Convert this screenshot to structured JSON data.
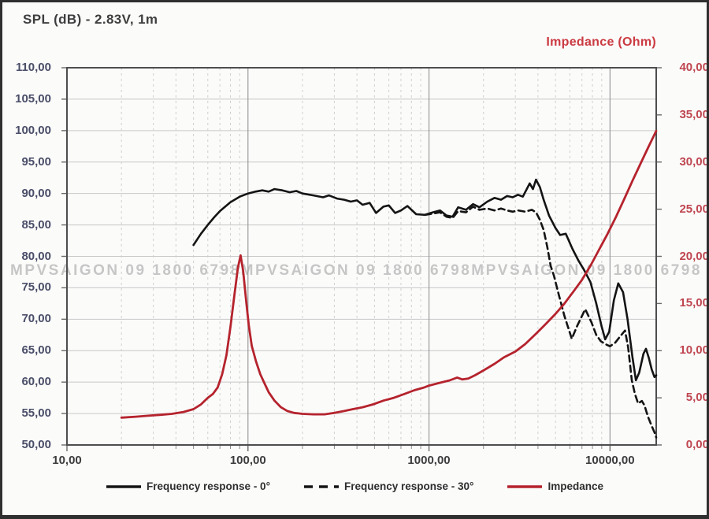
{
  "titles": {
    "left": "SPL (dB) - 2.83V, 1m",
    "right": "Impedance (Ohm)"
  },
  "watermark": {
    "text": "MPVSAIGON 09 1800 6798",
    "repeats": 3
  },
  "legend": {
    "items": [
      {
        "label": "Frequency response - 0°",
        "style": "solid",
        "color": "#141414"
      },
      {
        "label": "Frequency response - 30°",
        "style": "dashed",
        "color": "#141414"
      },
      {
        "label": "Impedance",
        "style": "solid",
        "color": "#b5232d"
      }
    ]
  },
  "colors": {
    "background": "#fbfbfa",
    "frame_border": "#2f2f2f",
    "plot_border": "#4d4d4d",
    "grid_major_h": "#c8c8c8",
    "grid_major_v": "#9b9b9b",
    "grid_minor_v": "#d0d0d0",
    "left_axis_text": "#4a4e68",
    "right_axis_text": "#bf4650",
    "x_axis_text": "#3c3c3c",
    "spl_curve": "#141414",
    "impedance_curve": "#b5232d"
  },
  "chart_data": {
    "type": "line",
    "title": "SPL (dB) - 2.83V, 1m",
    "secondary_title": "Impedance (Ohm)",
    "grid": true,
    "legend_position": "bottom",
    "x_axis": {
      "scale": "log",
      "min": 10,
      "max": 18000,
      "tick_values": [
        10,
        100,
        1000,
        10000
      ],
      "tick_labels": [
        "10,00",
        "100,00",
        "1000,00",
        "10000,00"
      ]
    },
    "y_left": {
      "label": "SPL (dB)",
      "min": 50,
      "max": 110,
      "step": 5,
      "tick_labels": [
        "110,00",
        "105,00",
        "100,00",
        "95,00",
        "90,00",
        "85,00",
        "80,00",
        "75,00",
        "70,00",
        "65,00",
        "60,00",
        "55,00",
        "50,00"
      ]
    },
    "y_right": {
      "label": "Impedance (Ohm)",
      "min": 0,
      "max": 40,
      "step": 5,
      "tick_labels": [
        "40,00",
        "35,00",
        "30,00",
        "25,00",
        "20,00",
        "15,00",
        "10,00",
        "5,00",
        "0,00"
      ]
    },
    "series": [
      {
        "name": "Frequency response - 0°",
        "axis": "left",
        "style": "solid",
        "color": "#141414",
        "width": 2.6,
        "points": [
          [
            50,
            81.8
          ],
          [
            55,
            83.6
          ],
          [
            60,
            85.0
          ],
          [
            65,
            86.2
          ],
          [
            70,
            87.2
          ],
          [
            80,
            88.6
          ],
          [
            90,
            89.5
          ],
          [
            100,
            90.0
          ],
          [
            110,
            90.3
          ],
          [
            120,
            90.5
          ],
          [
            130,
            90.3
          ],
          [
            140,
            90.7
          ],
          [
            155,
            90.5
          ],
          [
            170,
            90.2
          ],
          [
            185,
            90.4
          ],
          [
            200,
            90.0
          ],
          [
            230,
            89.7
          ],
          [
            260,
            89.4
          ],
          [
            280,
            89.7
          ],
          [
            310,
            89.2
          ],
          [
            340,
            89.0
          ],
          [
            370,
            88.7
          ],
          [
            400,
            88.9
          ],
          [
            430,
            88.2
          ],
          [
            470,
            88.5
          ],
          [
            510,
            86.9
          ],
          [
            560,
            87.9
          ],
          [
            600,
            88.1
          ],
          [
            650,
            86.9
          ],
          [
            700,
            87.3
          ],
          [
            760,
            88.0
          ],
          [
            850,
            86.7
          ],
          [
            950,
            86.6
          ],
          [
            1050,
            87.0
          ],
          [
            1150,
            87.3
          ],
          [
            1250,
            86.5
          ],
          [
            1350,
            86.3
          ],
          [
            1450,
            87.8
          ],
          [
            1600,
            87.4
          ],
          [
            1750,
            88.3
          ],
          [
            1900,
            87.8
          ],
          [
            2100,
            88.7
          ],
          [
            2300,
            89.3
          ],
          [
            2500,
            89.0
          ],
          [
            2700,
            89.6
          ],
          [
            2900,
            89.4
          ],
          [
            3100,
            89.8
          ],
          [
            3300,
            89.5
          ],
          [
            3600,
            91.6
          ],
          [
            3750,
            90.7
          ],
          [
            3900,
            92.2
          ],
          [
            4100,
            91.0
          ],
          [
            4300,
            89.0
          ],
          [
            4600,
            86.5
          ],
          [
            5000,
            84.5
          ],
          [
            5300,
            83.4
          ],
          [
            5700,
            83.6
          ],
          [
            6200,
            81.2
          ],
          [
            6700,
            79.3
          ],
          [
            7200,
            77.8
          ],
          [
            7800,
            75.9
          ],
          [
            8400,
            72.5
          ],
          [
            9000,
            68.8
          ],
          [
            9400,
            66.8
          ],
          [
            9900,
            68.0
          ],
          [
            10500,
            73.0
          ],
          [
            11100,
            75.7
          ],
          [
            11800,
            74.3
          ],
          [
            12500,
            70.0
          ],
          [
            13300,
            64.0
          ],
          [
            13900,
            60.3
          ],
          [
            14500,
            61.5
          ],
          [
            15300,
            64.5
          ],
          [
            15800,
            65.3
          ],
          [
            16400,
            63.8
          ],
          [
            17000,
            62.0
          ],
          [
            17600,
            60.8
          ],
          [
            18000,
            61.1
          ]
        ]
      },
      {
        "name": "Frequency response - 30°",
        "axis": "left",
        "style": "dashed",
        "color": "#141414",
        "width": 2.6,
        "points": [
          [
            950,
            86.6
          ],
          [
            1050,
            86.8
          ],
          [
            1150,
            87.0
          ],
          [
            1250,
            86.3
          ],
          [
            1350,
            86.1
          ],
          [
            1450,
            87.2
          ],
          [
            1600,
            87.0
          ],
          [
            1750,
            87.9
          ],
          [
            1900,
            87.4
          ],
          [
            2100,
            87.6
          ],
          [
            2300,
            87.3
          ],
          [
            2500,
            87.6
          ],
          [
            2700,
            87.3
          ],
          [
            2900,
            87.1
          ],
          [
            3100,
            87.3
          ],
          [
            3400,
            87.1
          ],
          [
            3700,
            87.4
          ],
          [
            3900,
            87.0
          ],
          [
            4100,
            85.8
          ],
          [
            4300,
            84.2
          ],
          [
            4500,
            81.5
          ],
          [
            4700,
            78.5
          ],
          [
            4900,
            76.9
          ],
          [
            5200,
            74.0
          ],
          [
            5600,
            70.5
          ],
          [
            6150,
            66.9
          ],
          [
            6600,
            69.0
          ],
          [
            7300,
            71.6
          ],
          [
            7900,
            69.5
          ],
          [
            8400,
            67.5
          ],
          [
            8900,
            66.5
          ],
          [
            9500,
            66.0
          ],
          [
            10000,
            65.7
          ],
          [
            10700,
            66.3
          ],
          [
            11400,
            67.3
          ],
          [
            12100,
            68.2
          ],
          [
            12600,
            65.5
          ],
          [
            13200,
            60.3
          ],
          [
            13700,
            58.2
          ],
          [
            14300,
            56.6
          ],
          [
            15000,
            57.0
          ],
          [
            15500,
            56.3
          ],
          [
            16200,
            54.5
          ],
          [
            17000,
            53.0
          ],
          [
            17600,
            52.0
          ],
          [
            18000,
            51.2
          ]
        ]
      },
      {
        "name": "Impedance",
        "axis": "right",
        "style": "solid",
        "color": "#b5232d",
        "width": 2.8,
        "points": [
          [
            20,
            2.9
          ],
          [
            24,
            3.0
          ],
          [
            28,
            3.1
          ],
          [
            33,
            3.2
          ],
          [
            38,
            3.3
          ],
          [
            44,
            3.5
          ],
          [
            50,
            3.8
          ],
          [
            55,
            4.3
          ],
          [
            60,
            5.0
          ],
          [
            64,
            5.4
          ],
          [
            68,
            6.1
          ],
          [
            72,
            7.5
          ],
          [
            76,
            9.5
          ],
          [
            80,
            12.5
          ],
          [
            84,
            15.8
          ],
          [
            88,
            18.8
          ],
          [
            91,
            20.1
          ],
          [
            94,
            18.5
          ],
          [
            98,
            15.0
          ],
          [
            101,
            12.7
          ],
          [
            105,
            10.5
          ],
          [
            111,
            8.8
          ],
          [
            117,
            7.5
          ],
          [
            123,
            6.6
          ],
          [
            130,
            5.6
          ],
          [
            140,
            4.7
          ],
          [
            152,
            4.0
          ],
          [
            165,
            3.6
          ],
          [
            180,
            3.4
          ],
          [
            200,
            3.3
          ],
          [
            230,
            3.25
          ],
          [
            265,
            3.25
          ],
          [
            300,
            3.4
          ],
          [
            340,
            3.6
          ],
          [
            380,
            3.8
          ],
          [
            430,
            4.0
          ],
          [
            490,
            4.3
          ],
          [
            560,
            4.7
          ],
          [
            640,
            5.0
          ],
          [
            730,
            5.4
          ],
          [
            830,
            5.8
          ],
          [
            940,
            6.1
          ],
          [
            1000,
            6.3
          ],
          [
            1150,
            6.6
          ],
          [
            1300,
            6.85
          ],
          [
            1430,
            7.15
          ],
          [
            1530,
            6.95
          ],
          [
            1650,
            7.05
          ],
          [
            1800,
            7.4
          ],
          [
            2000,
            7.9
          ],
          [
            2300,
            8.6
          ],
          [
            2600,
            9.3
          ],
          [
            3000,
            9.9
          ],
          [
            3400,
            10.7
          ],
          [
            3900,
            11.8
          ],
          [
            4400,
            12.8
          ],
          [
            5000,
            13.9
          ],
          [
            5600,
            15.0
          ],
          [
            6300,
            16.3
          ],
          [
            7000,
            17.5
          ],
          [
            7800,
            19.0
          ],
          [
            8700,
            20.7
          ],
          [
            9700,
            22.4
          ],
          [
            10800,
            24.2
          ],
          [
            12000,
            26.1
          ],
          [
            13300,
            28.0
          ],
          [
            14800,
            29.9
          ],
          [
            16300,
            31.6
          ],
          [
            18000,
            33.3
          ]
        ]
      }
    ]
  }
}
